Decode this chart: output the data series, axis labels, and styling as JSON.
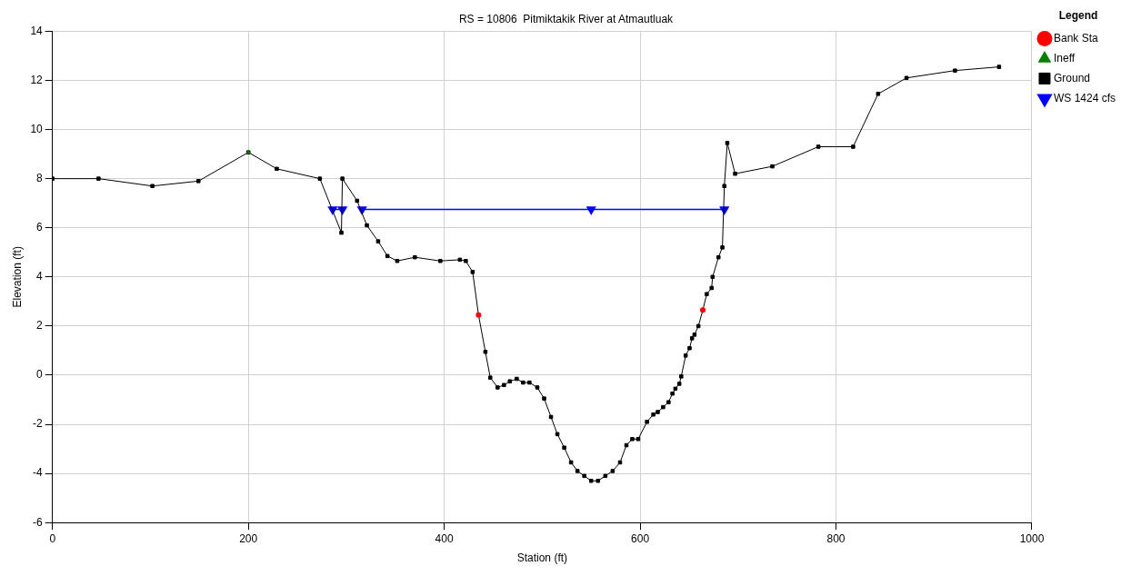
{
  "chart_data": {
    "type": "line",
    "title": "RS = 10806  Pitmiktakik River at Atmautluak",
    "xlabel": "Station (ft)",
    "ylabel": "Elevation (ft)",
    "legend_title": "Legend",
    "legend": "top right",
    "grid": true,
    "xlim": [
      0,
      1000
    ],
    "xticks": [
      0,
      200,
      400,
      600,
      800,
      1000
    ],
    "ylim": [
      -6,
      14
    ],
    "yticks": [
      -6,
      -4,
      -2,
      0,
      2,
      4,
      6,
      8,
      10,
      12,
      14
    ],
    "series": [
      {
        "name": "WS 1424 cfs",
        "color": "#0000ff",
        "marker": "triangle",
        "line_style": "solid",
        "x": [
          286,
          296,
          305,
          316,
          550,
          686
        ],
        "values": [
          6.75,
          6.75,
          null,
          6.75,
          6.75,
          6.75
        ]
      },
      {
        "name": "Ground",
        "color": "#000000",
        "marker": "square",
        "line_style": "solid",
        "x": [
          0,
          47,
          102,
          149,
          200,
          229,
          273,
          295,
          296,
          311,
          321,
          332.5,
          342,
          352,
          370,
          396,
          416,
          422,
          429,
          435,
          442,
          447,
          454.5,
          461,
          467,
          474,
          480.5,
          487,
          495,
          502,
          509,
          515.5,
          522.5,
          529.5,
          536,
          543,
          550,
          557,
          564.5,
          572,
          579.5,
          586,
          592,
          598,
          607,
          613.5,
          618,
          623.5,
          629,
          633,
          636,
          640,
          642,
          646.5,
          650.5,
          653,
          655.5,
          659.5,
          664,
          668,
          673,
          674,
          680,
          684,
          686,
          689,
          697,
          735,
          782,
          817.5,
          843,
          872,
          921.5,
          966.5
        ],
        "values": [
          8.0,
          8.0,
          7.7,
          7.9,
          9.07,
          8.4,
          8.0,
          5.8,
          8.0,
          7.1,
          6.1,
          5.45,
          4.85,
          4.65,
          4.8,
          4.65,
          4.7,
          4.65,
          4.2,
          2.45,
          0.95,
          -0.1,
          -0.5,
          -0.4,
          -0.25,
          -0.15,
          -0.3,
          -0.3,
          -0.5,
          -0.95,
          -1.7,
          -2.4,
          -2.95,
          -3.55,
          -3.9,
          -4.1,
          -4.3,
          -4.3,
          -4.1,
          -3.9,
          -3.55,
          -2.85,
          -2.6,
          -2.6,
          -1.9,
          -1.6,
          -1.5,
          -1.3,
          -1.1,
          -0.75,
          -0.55,
          -0.35,
          -0.05,
          0.8,
          1.1,
          1.5,
          1.65,
          2.0,
          2.65,
          3.3,
          3.55,
          4.0,
          4.8,
          5.2,
          7.7,
          9.45,
          8.2,
          8.5,
          9.3,
          9.3,
          11.45,
          12.1,
          12.4,
          12.55
        ]
      },
      {
        "name": "Ineff",
        "type": "scatter",
        "color": "#008000",
        "marker": "triangle",
        "x": [
          200
        ],
        "values": [
          9.07
        ]
      },
      {
        "name": "Bank Sta",
        "type": "scatter",
        "color": "#ff0000",
        "marker": "circle",
        "x": [
          435,
          664
        ],
        "values": [
          2.45,
          2.65
        ]
      }
    ]
  }
}
